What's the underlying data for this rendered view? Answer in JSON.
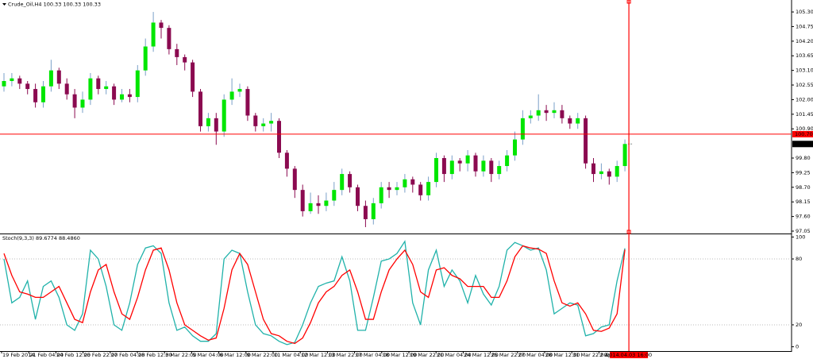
{
  "chart_data": {
    "type": "candlestick",
    "symbol_label": "Crude_Oil,H4  100.33 100.33 100.33",
    "up_color": "#00e600",
    "down_color": "#8b0a50",
    "open": [
      102.5,
      102.7,
      102.8,
      102.6,
      102.4,
      101.9,
      102.5,
      103.1,
      102.6,
      102.2,
      101.7,
      102.0,
      102.8,
      102.4,
      102.5,
      102.0,
      102.2,
      102.1,
      103.1,
      104.0,
      104.9,
      104.7,
      103.9,
      103.6,
      103.4,
      102.3,
      101.0,
      101.3,
      100.8,
      102.0,
      102.3,
      102.4,
      101.4,
      101.0,
      101.1,
      101.2,
      100.0,
      99.4,
      98.6,
      97.8,
      98.1,
      98.0,
      98.2,
      98.6,
      99.2,
      98.7,
      98.0,
      97.5,
      98.1,
      98.7,
      98.6,
      98.7,
      99.0,
      98.8,
      98.4,
      98.9,
      99.8,
      99.2,
      99.7,
      99.6,
      99.9,
      99.3,
      99.7,
      99.2,
      99.5,
      99.9,
      100.5,
      101.3,
      101.4,
      101.6,
      101.5,
      101.6,
      101.3,
      101.1,
      101.3,
      99.6,
      99.2,
      99.3,
      99.1,
      99.5
    ],
    "high": [
      103.0,
      103.0,
      102.9,
      102.7,
      102.6,
      102.7,
      103.5,
      103.2,
      102.8,
      102.4,
      102.3,
      103.0,
      102.9,
      102.7,
      102.6,
      102.4,
      102.4,
      103.3,
      104.3,
      105.3,
      105.0,
      104.8,
      104.1,
      103.7,
      103.5,
      102.4,
      101.5,
      101.5,
      102.2,
      102.8,
      102.6,
      102.5,
      101.5,
      101.3,
      101.5,
      101.3,
      100.1,
      99.5,
      98.8,
      98.5,
      98.4,
      98.5,
      98.9,
      99.4,
      99.3,
      98.8,
      98.2,
      98.3,
      98.9,
      98.9,
      98.9,
      99.2,
      99.1,
      98.9,
      99.1,
      100.0,
      99.9,
      99.9,
      99.8,
      100.1,
      100.0,
      99.9,
      99.8,
      99.7,
      100.1,
      100.8,
      101.6,
      101.6,
      102.2,
      101.8,
      101.9,
      101.8,
      101.4,
      101.5,
      101.4,
      99.8,
      99.6,
      99.4,
      99.7,
      100.5
    ],
    "low": [
      102.3,
      102.5,
      102.4,
      102.2,
      101.7,
      101.7,
      102.3,
      102.4,
      102.0,
      101.3,
      101.5,
      101.8,
      102.2,
      102.2,
      101.8,
      101.9,
      101.9,
      101.9,
      102.9,
      103.8,
      104.3,
      103.7,
      103.3,
      103.1,
      102.1,
      100.8,
      100.8,
      100.3,
      100.6,
      101.8,
      102.1,
      101.2,
      100.8,
      100.8,
      100.8,
      99.8,
      99.1,
      98.3,
      97.6,
      97.7,
      97.7,
      97.8,
      98.0,
      98.4,
      98.5,
      97.8,
      97.2,
      97.3,
      97.9,
      98.3,
      98.4,
      98.5,
      98.5,
      98.2,
      98.2,
      98.7,
      98.9,
      99.0,
      99.3,
      99.3,
      99.1,
      99.1,
      98.9,
      99.0,
      99.3,
      99.7,
      100.3,
      101.1,
      101.2,
      101.2,
      101.3,
      101.1,
      100.9,
      100.9,
      99.4,
      98.9,
      99.0,
      98.8,
      98.9,
      99.3
    ],
    "close": [
      102.7,
      102.8,
      102.6,
      102.4,
      101.9,
      102.5,
      103.1,
      102.6,
      102.2,
      101.7,
      102.0,
      102.8,
      102.4,
      102.5,
      102.0,
      102.2,
      102.1,
      103.1,
      104.0,
      104.9,
      104.7,
      103.9,
      103.6,
      103.4,
      102.3,
      101.0,
      101.3,
      100.8,
      102.0,
      102.3,
      102.4,
      101.4,
      101.0,
      101.1,
      101.2,
      100.0,
      99.4,
      98.6,
      97.8,
      98.1,
      98.0,
      98.2,
      98.6,
      99.2,
      98.7,
      98.0,
      97.5,
      98.1,
      98.7,
      98.6,
      98.7,
      99.0,
      98.8,
      98.4,
      98.9,
      99.8,
      99.2,
      99.7,
      99.6,
      99.9,
      99.3,
      99.7,
      99.2,
      99.5,
      99.9,
      100.5,
      101.3,
      101.4,
      101.6,
      101.5,
      101.6,
      101.3,
      101.1,
      101.3,
      99.6,
      99.2,
      99.3,
      99.1,
      99.5,
      100.33
    ],
    "ylim": [
      96.99,
      105.75
    ],
    "yticks": [
      {
        "value": 105.3,
        "label": "105.30"
      },
      {
        "value": 104.75,
        "label": "104.75"
      },
      {
        "value": 104.2,
        "label": "104.20"
      },
      {
        "value": 103.65,
        "label": "103.65"
      },
      {
        "value": 103.1,
        "label": "103.10"
      },
      {
        "value": 102.55,
        "label": "102.55"
      },
      {
        "value": 102.0,
        "label": "102.00"
      },
      {
        "value": 101.45,
        "label": "101.45"
      },
      {
        "value": 100.9,
        "label": "100.90"
      },
      {
        "value": 99.8,
        "label": "99.80"
      },
      {
        "value": 99.25,
        "label": "99.25"
      },
      {
        "value": 98.7,
        "label": "98.70"
      },
      {
        "value": 98.15,
        "label": "98.15"
      },
      {
        "value": 97.6,
        "label": "97.60"
      },
      {
        "value": 97.05,
        "label": "97.05"
      }
    ],
    "hline": {
      "value": 100.7,
      "label": "100.70",
      "color": "#ff0000"
    },
    "last": {
      "value": 100.33,
      "label": "100.33"
    },
    "cursor": {
      "label": "2014.04.03 16:00",
      "color": "#ff0000"
    },
    "x_labels": [
      "19 Feb 2014",
      "21 Feb 04:00",
      "24 Feb 12:00",
      "25 Feb 22:00",
      "27 Feb 04:00",
      "28 Feb 12:00",
      "3 Mar 22:00",
      "5 Mar 04:00",
      "6 Mar 12:00",
      "9 Mar 22:00",
      "11 Mar 04:00",
      "12 Mar 12:00",
      "13 Mar 22:00",
      "17 Mar 04:00",
      "18 Mar 12:00",
      "19 Mar 22:00",
      "21 Mar 04:00",
      "24 Mar 12:00",
      "25 Mar 22:00",
      "27 Mar 04:00",
      "28 Mar 12:00",
      "31 Mar 22:00",
      "2 Apr 04:00"
    ],
    "stoch": {
      "type": "line",
      "title": "Stoch(9,3,3) 89.6774 88.4860",
      "ylim": [
        -1,
        101
      ],
      "yticks": [
        100,
        80,
        20,
        0
      ],
      "level_lines": [
        80,
        20
      ],
      "series": [
        {
          "color": "#20b2aa",
          "values": [
            80,
            40,
            45,
            60,
            25,
            55,
            60,
            45,
            20,
            15,
            30,
            88,
            80,
            55,
            20,
            15,
            40,
            75,
            90,
            92,
            85,
            40,
            15,
            18,
            10,
            5,
            5,
            12,
            80,
            88,
            85,
            50,
            20,
            12,
            10,
            5,
            2,
            4,
            20,
            40,
            55,
            58,
            60,
            82,
            60,
            15,
            15,
            45,
            78,
            80,
            85,
            96,
            40,
            20,
            70,
            88,
            55,
            70,
            60,
            40,
            65,
            48,
            38,
            55,
            88,
            95,
            92,
            88,
            90,
            70,
            30,
            35,
            40,
            38,
            10,
            12,
            18,
            20,
            60,
            89.6774
          ]
        },
        {
          "color": "#ff0000",
          "values": [
            85,
            65,
            50,
            48,
            45,
            45,
            50,
            55,
            40,
            25,
            22,
            50,
            70,
            75,
            50,
            30,
            25,
            45,
            70,
            88,
            90,
            70,
            40,
            20,
            15,
            10,
            6,
            8,
            35,
            70,
            85,
            75,
            50,
            25,
            12,
            10,
            5,
            3,
            8,
            22,
            40,
            50,
            55,
            65,
            70,
            50,
            25,
            25,
            50,
            70,
            80,
            88,
            75,
            50,
            45,
            70,
            72,
            65,
            62,
            55,
            55,
            55,
            45,
            45,
            60,
            82,
            92,
            90,
            89,
            85,
            60,
            40,
            37,
            40,
            30,
            15,
            14,
            17,
            30,
            88.486
          ]
        }
      ]
    }
  }
}
